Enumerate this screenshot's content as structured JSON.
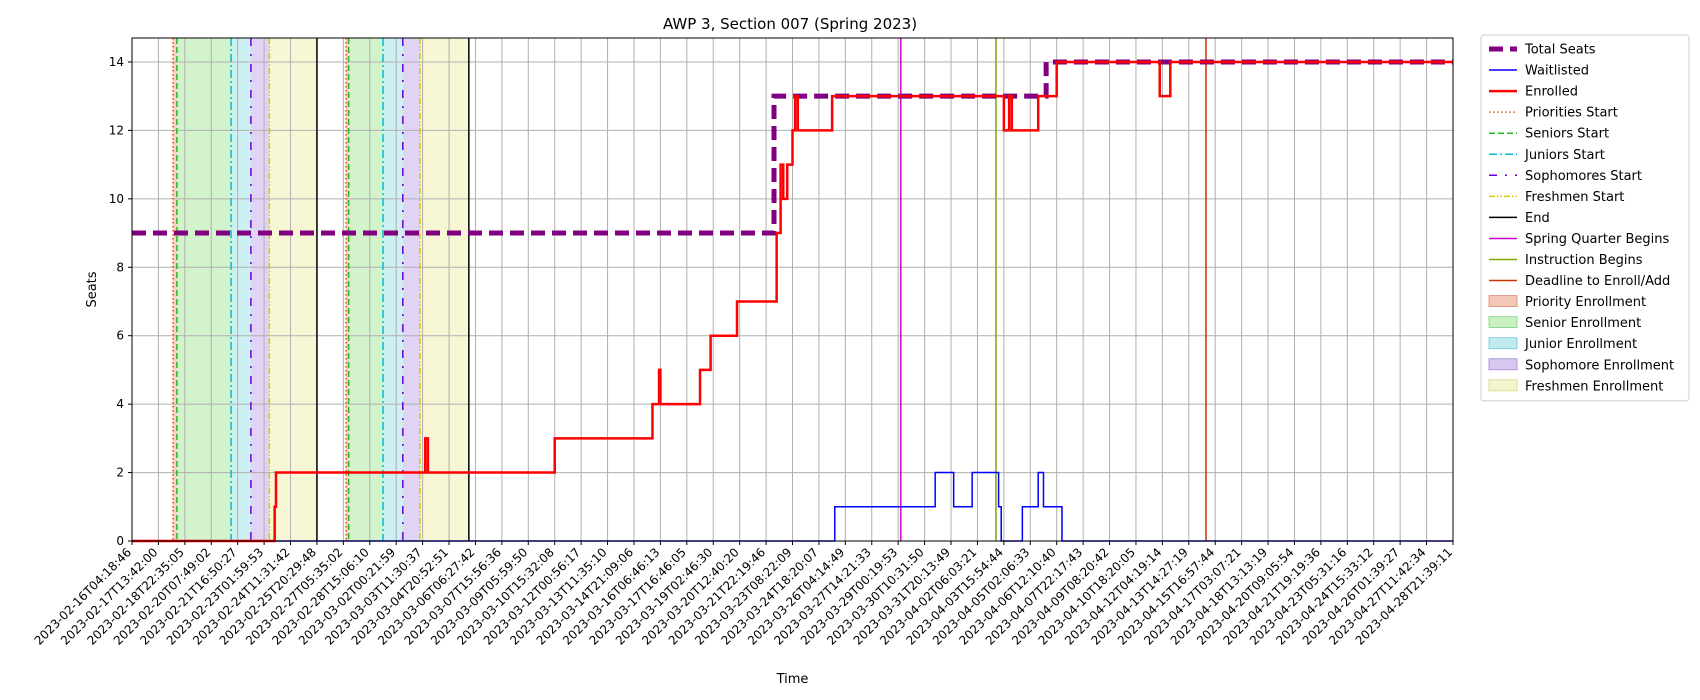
{
  "chart_data": {
    "type": "line",
    "title": "AWP 3, Section 007 (Spring 2023)",
    "xlabel": "Time",
    "ylabel": "Seats",
    "ylim": [
      0,
      14.7
    ],
    "yticks": [
      0,
      2,
      4,
      6,
      8,
      10,
      12,
      14
    ],
    "grid": true,
    "legend_position": "outside-right",
    "x_start": "2023-02-16T04:18:46",
    "x_end": "2023-04-28T21:39:11",
    "xtick_labels": [
      "2023-02-16T04:18:46",
      "2023-02-17T13:42:00",
      "2023-02-18T22:35:05",
      "2023-02-20T07:49:02",
      "2023-02-21T16:50:27",
      "2023-02-23T01:59:53",
      "2023-02-24T11:31:42",
      "2023-02-25T20:29:48",
      "2023-02-27T05:35:02",
      "2023-02-28T15:06:10",
      "2023-03-02T00:21:59",
      "2023-03-03T11:30:37",
      "2023-03-04T20:52:51",
      "2023-03-06T06:27:42",
      "2023-03-07T15:56:36",
      "2023-03-09T05:59:50",
      "2023-03-10T15:32:08",
      "2023-03-12T00:56:17",
      "2023-03-13T11:35:10",
      "2023-03-14T21:09:06",
      "2023-03-16T06:46:13",
      "2023-03-17T16:46:05",
      "2023-03-19T02:46:30",
      "2023-03-20T12:40:20",
      "2023-03-21T22:19:46",
      "2023-03-23T08:22:09",
      "2023-03-24T18:20:07",
      "2023-03-26T04:14:49",
      "2023-03-27T14:21:33",
      "2023-03-29T00:19:53",
      "2023-03-30T10:31:50",
      "2023-03-31T20:13:49",
      "2023-04-02T06:03:21",
      "2023-04-03T15:54:44",
      "2023-04-05T02:06:33",
      "2023-04-06T12:10:40",
      "2023-04-07T22:17:43",
      "2023-04-09T08:20:42",
      "2023-04-10T18:20:05",
      "2023-04-12T04:19:14",
      "2023-04-13T14:27:19",
      "2023-04-15T16:57:44",
      "2023-04-17T03:07:21",
      "2023-04-18T13:13:19",
      "2023-04-20T09:05:54",
      "2023-04-21T19:19:36",
      "2023-04-23T05:31:16",
      "2023-04-24T15:33:12",
      "2023-04-26T01:39:27",
      "2023-04-27T11:42:34",
      "2023-04-28T21:39:11"
    ],
    "series": [
      {
        "name": "Total Seats",
        "color": "#800080",
        "style": "dashed-thick",
        "points": [
          [
            0,
            9
          ],
          [
            24.3,
            9
          ],
          [
            24.3,
            13
          ],
          [
            34.6,
            13
          ],
          [
            34.6,
            14
          ],
          [
            50,
            14
          ]
        ]
      },
      {
        "name": "Waitlisted",
        "color": "#0000ff",
        "style": "solid",
        "points": [
          [
            0,
            0
          ],
          [
            26.6,
            0
          ],
          [
            26.6,
            1
          ],
          [
            30.4,
            1
          ],
          [
            30.4,
            2
          ],
          [
            31.1,
            2
          ],
          [
            31.1,
            1
          ],
          [
            31.8,
            1
          ],
          [
            31.8,
            2
          ],
          [
            32.8,
            2
          ],
          [
            32.8,
            1
          ],
          [
            32.9,
            1
          ],
          [
            32.9,
            0
          ],
          [
            33.7,
            0
          ],
          [
            33.7,
            1
          ],
          [
            34.3,
            1
          ],
          [
            34.3,
            2
          ],
          [
            34.5,
            2
          ],
          [
            34.5,
            1
          ],
          [
            35.2,
            1
          ],
          [
            35.2,
            0
          ],
          [
            50,
            0
          ]
        ]
      },
      {
        "name": "Enrolled",
        "color": "#ff0000",
        "style": "solid-thick",
        "points": [
          [
            0,
            0
          ],
          [
            5.4,
            0
          ],
          [
            5.4,
            1
          ],
          [
            5.45,
            1
          ],
          [
            5.45,
            2
          ],
          [
            11.1,
            2
          ],
          [
            11.1,
            3
          ],
          [
            11.2,
            3
          ],
          [
            11.2,
            2
          ],
          [
            16.0,
            2
          ],
          [
            16.0,
            3
          ],
          [
            19.7,
            3
          ],
          [
            19.7,
            4
          ],
          [
            19.95,
            4
          ],
          [
            19.95,
            5
          ],
          [
            20.0,
            5
          ],
          [
            20.0,
            4
          ],
          [
            21.5,
            4
          ],
          [
            21.5,
            5
          ],
          [
            21.9,
            5
          ],
          [
            21.9,
            6
          ],
          [
            22.9,
            6
          ],
          [
            22.9,
            7
          ],
          [
            24.4,
            7
          ],
          [
            24.4,
            9
          ],
          [
            24.55,
            9
          ],
          [
            24.55,
            11
          ],
          [
            24.65,
            11
          ],
          [
            24.65,
            10
          ],
          [
            24.8,
            10
          ],
          [
            24.8,
            11
          ],
          [
            25.0,
            11
          ],
          [
            25.0,
            12
          ],
          [
            25.1,
            12
          ],
          [
            25.1,
            13
          ],
          [
            25.2,
            13
          ],
          [
            25.2,
            12
          ],
          [
            26.5,
            12
          ],
          [
            26.5,
            13
          ],
          [
            33.0,
            13
          ],
          [
            33.0,
            12
          ],
          [
            33.2,
            12
          ],
          [
            33.2,
            13
          ],
          [
            33.3,
            13
          ],
          [
            33.3,
            12
          ],
          [
            34.3,
            12
          ],
          [
            34.3,
            13
          ],
          [
            35.0,
            13
          ],
          [
            35.0,
            14
          ],
          [
            38.9,
            14
          ],
          [
            38.9,
            13
          ],
          [
            39.3,
            13
          ],
          [
            39.3,
            14
          ],
          [
            50,
            14
          ]
        ]
      }
    ],
    "vlines": [
      {
        "name": "Priorities Start",
        "color": "#ff4500",
        "style": "dotted",
        "xs": [
          1.55,
          8.1
        ]
      },
      {
        "name": "Seniors Start",
        "color": "#22bb22",
        "style": "dashed",
        "xs": [
          1.7,
          8.2
        ]
      },
      {
        "name": "Juniors Start",
        "color": "#00bcd4",
        "style": "dashdot",
        "xs": [
          3.75,
          9.5
        ]
      },
      {
        "name": "Sophomores Start",
        "color": "#6a00d8",
        "style": "dashdotsparse",
        "xs": [
          4.5,
          10.25
        ]
      },
      {
        "name": "Freshmen Start",
        "color": "#d8c800",
        "style": "dashdotdot",
        "xs": [
          5.2,
          10.9
        ]
      },
      {
        "name": "End",
        "color": "#000000",
        "style": "solid",
        "xs": [
          7.0,
          12.75
        ]
      },
      {
        "name": "Spring Quarter Begins",
        "color": "#cc00cc",
        "style": "solid",
        "xs": [
          29.1
        ]
      },
      {
        "name": "Instruction Begins",
        "color": "#7fa800",
        "style": "solid",
        "xs": [
          32.7
        ]
      },
      {
        "name": "Deadline to Enroll/Add",
        "color": "#cc3300",
        "style": "solid",
        "xs": [
          40.65
        ]
      }
    ],
    "spans": [
      {
        "name": "Priority Enrollment",
        "color": "#f4c6b8",
        "ranges": [
          [
            1.55,
            1.7
          ],
          [
            8.1,
            8.2
          ]
        ]
      },
      {
        "name": "Senior Enrollment",
        "color": "#c8f0c0",
        "ranges": [
          [
            1.7,
            3.75
          ],
          [
            8.2,
            9.5
          ]
        ]
      },
      {
        "name": "Junior Enrollment",
        "color": "#c0ecf0",
        "ranges": [
          [
            3.75,
            4.5
          ],
          [
            9.5,
            10.25
          ]
        ]
      },
      {
        "name": "Sophomore Enrollment",
        "color": "#d8c8f0",
        "ranges": [
          [
            4.5,
            5.2
          ],
          [
            10.25,
            10.9
          ]
        ]
      },
      {
        "name": "Freshmen Enrollment",
        "color": "#f5f5cc",
        "ranges": [
          [
            5.2,
            7.0
          ],
          [
            10.9,
            12.75
          ]
        ]
      }
    ],
    "legend": [
      {
        "label": "Total Seats",
        "kind": "line",
        "color": "#800080",
        "style": "dashed-thick"
      },
      {
        "label": "Waitlisted",
        "kind": "line",
        "color": "#0000ff",
        "style": "solid"
      },
      {
        "label": "Enrolled",
        "kind": "line",
        "color": "#ff0000",
        "style": "solid-thick"
      },
      {
        "label": "Priorities Start",
        "kind": "line",
        "color": "#ff4500",
        "style": "dotted"
      },
      {
        "label": "Seniors Start",
        "kind": "line",
        "color": "#22bb22",
        "style": "dashed"
      },
      {
        "label": "Juniors Start",
        "kind": "line",
        "color": "#00bcd4",
        "style": "dashdot"
      },
      {
        "label": "Sophomores Start",
        "kind": "line",
        "color": "#6a00d8",
        "style": "dashdotsparse"
      },
      {
        "label": "Freshmen Start",
        "kind": "line",
        "color": "#d8c800",
        "style": "dashdotdot"
      },
      {
        "label": "End",
        "kind": "line",
        "color": "#000000",
        "style": "solid"
      },
      {
        "label": "Spring Quarter Begins",
        "kind": "line",
        "color": "#cc00cc",
        "style": "solid"
      },
      {
        "label": "Instruction Begins",
        "kind": "line",
        "color": "#7fa800",
        "style": "solid"
      },
      {
        "label": "Deadline to Enroll/Add",
        "kind": "line",
        "color": "#cc3300",
        "style": "solid"
      },
      {
        "label": "Priority Enrollment",
        "kind": "patch",
        "color": "#f4c6b8",
        "edge": "#e08a70"
      },
      {
        "label": "Senior Enrollment",
        "kind": "patch",
        "color": "#c8f0c0",
        "edge": "#7fd07f"
      },
      {
        "label": "Junior Enrollment",
        "kind": "patch",
        "color": "#c0ecf0",
        "edge": "#70c8d8"
      },
      {
        "label": "Sophomore Enrollment",
        "kind": "patch",
        "color": "#d8c8f0",
        "edge": "#a088d8"
      },
      {
        "label": "Freshmen Enrollment",
        "kind": "patch",
        "color": "#f5f5cc",
        "edge": "#d8d890"
      }
    ]
  }
}
